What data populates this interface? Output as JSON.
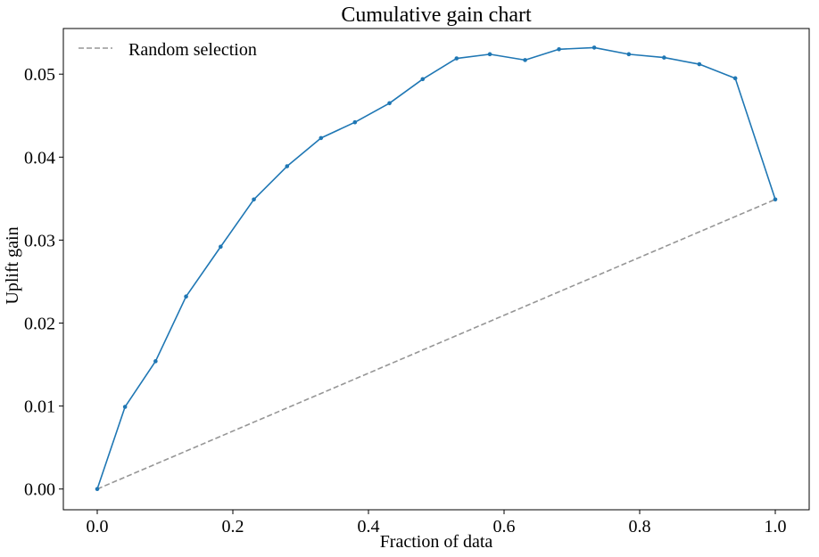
{
  "chart_data": {
    "type": "line",
    "title": "Cumulative gain chart",
    "xlabel": "Fraction of data",
    "ylabel": "Uplift gain",
    "xlim": [
      -0.05,
      1.05
    ],
    "ylim": [
      -0.0025,
      0.0555
    ],
    "xticks": [
      0.0,
      0.2,
      0.4,
      0.6,
      0.8,
      1.0
    ],
    "xtick_labels": [
      "0.0",
      "0.2",
      "0.4",
      "0.6",
      "0.8",
      "1.0"
    ],
    "yticks": [
      0.0,
      0.01,
      0.02,
      0.03,
      0.04,
      0.05
    ],
    "ytick_labels": [
      "0.00",
      "0.01",
      "0.02",
      "0.03",
      "0.04",
      "0.05"
    ],
    "grid": false,
    "legend": {
      "placement": "top-left"
    },
    "series": [
      {
        "color": "#1f77b4",
        "style": "solid",
        "markers": true,
        "x": [
          0.0,
          0.041,
          0.086,
          0.131,
          0.182,
          0.231,
          0.28,
          0.33,
          0.38,
          0.431,
          0.48,
          0.53,
          0.579,
          0.631,
          0.681,
          0.733,
          0.784,
          0.836,
          0.888,
          0.941,
          1.0
        ],
        "y": [
          0.0,
          0.0099,
          0.0154,
          0.0232,
          0.0292,
          0.0349,
          0.0389,
          0.0423,
          0.0442,
          0.0465,
          0.0494,
          0.0519,
          0.0524,
          0.0517,
          0.053,
          0.0532,
          0.0524,
          0.052,
          0.0512,
          0.0495,
          0.0349
        ]
      },
      {
        "name": "Random selection",
        "color": "#969696",
        "style": "dashed",
        "markers": false,
        "x": [
          0.0,
          1.0
        ],
        "y": [
          0.0,
          0.0349
        ]
      }
    ]
  }
}
